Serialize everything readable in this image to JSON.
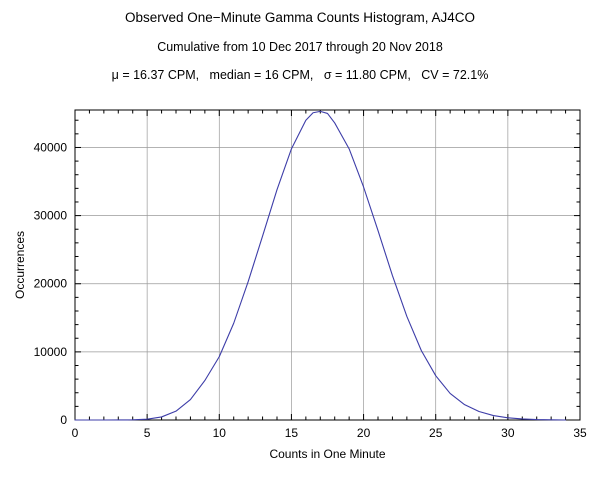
{
  "titles": {
    "line1": "Observed One−Minute Gamma Counts Histogram, AJ4CO",
    "line2": "Cumulative from 10 Dec 2017 through 20 Nov 2018",
    "line3": "μ = 16.37 CPM,   median = 16 CPM,   σ = 11.80 CPM,   CV = 72.1%"
  },
  "chart_data": {
    "type": "line",
    "title": "Observed One−Minute Gamma Counts Histogram, AJ4CO",
    "subtitle": "Cumulative from 10 Dec 2017 through 20 Nov 2018",
    "stats": {
      "mean_cpm": 16.37,
      "median_cpm": 16,
      "sigma_cpm": 11.8,
      "cv_percent": 72.1
    },
    "xlabel": "Counts in One Minute",
    "ylabel": "Occurrences",
    "xlim": [
      0,
      35
    ],
    "ylim": [
      0,
      45500
    ],
    "x_major_ticks": [
      0,
      5,
      10,
      15,
      20,
      25,
      30,
      35
    ],
    "y_major_ticks": [
      0,
      10000,
      20000,
      30000,
      40000
    ],
    "x_minor_step": 1,
    "y_minor_step": 2000,
    "grid": true,
    "legend": "none",
    "line_color": "#3d3da8",
    "grid_color": "#9a9a9a",
    "frame_color": "#000000",
    "x": [
      0,
      1,
      2,
      3,
      4,
      5,
      6,
      7,
      8,
      9,
      10,
      11,
      12,
      13,
      14,
      15,
      16,
      16.5,
      17,
      17.5,
      18,
      19,
      20,
      21,
      22,
      23,
      24,
      25,
      26,
      27,
      28,
      29,
      30,
      31,
      32,
      33,
      34
    ],
    "y": [
      0,
      0,
      0,
      5,
      20,
      120,
      450,
      1300,
      3000,
      5800,
      9300,
      14200,
      20300,
      27000,
      33800,
      39800,
      44000,
      45100,
      45300,
      45000,
      43600,
      39800,
      34200,
      27800,
      21200,
      15200,
      10200,
      6500,
      3900,
      2250,
      1250,
      650,
      320,
      150,
      60,
      20,
      0
    ]
  }
}
